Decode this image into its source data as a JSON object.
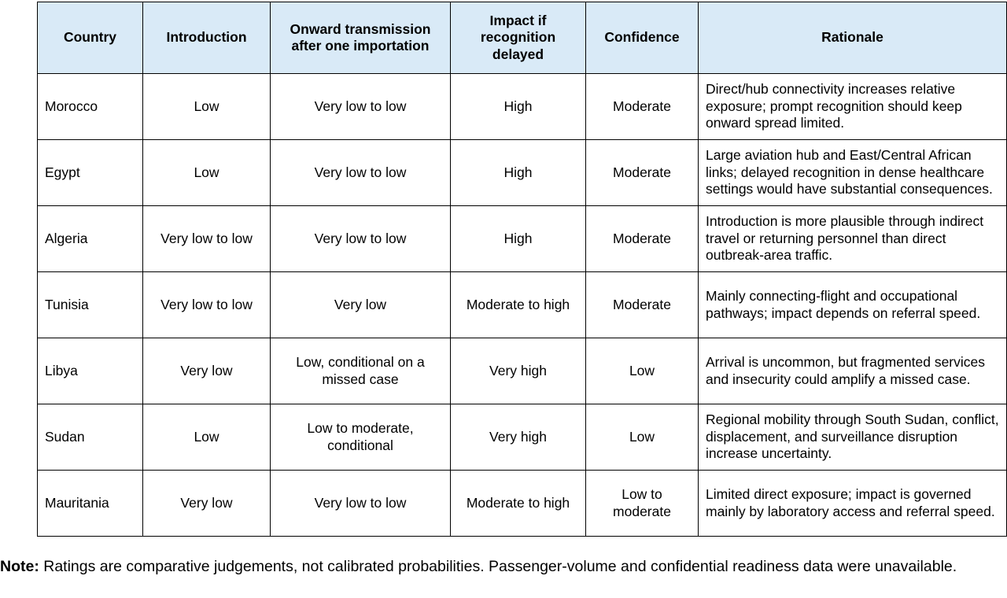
{
  "table": {
    "headers": {
      "country": "Country",
      "introduction": "Introduction",
      "onward": "Onward transmission after one importation",
      "impact": "Impact if recognition delayed",
      "confidence": "Confidence",
      "rationale": "Rationale"
    },
    "rows": [
      {
        "country": "Morocco",
        "introduction": "Low",
        "onward": "Very low to low",
        "impact": "High",
        "confidence": "Moderate",
        "rationale": "Direct/hub connectivity increases relative exposure; prompt recognition should keep onward spread limited."
      },
      {
        "country": "Egypt",
        "introduction": "Low",
        "onward": "Very low to low",
        "impact": "High",
        "confidence": "Moderate",
        "rationale": "Large aviation hub and East/Central African links; delayed recognition in dense healthcare settings would have substantial consequences."
      },
      {
        "country": "Algeria",
        "introduction": "Very low to low",
        "onward": "Very low to low",
        "impact": "High",
        "confidence": "Moderate",
        "rationale": "Introduction is more plausible through indirect travel or returning personnel than direct outbreak-area traffic."
      },
      {
        "country": "Tunisia",
        "introduction": "Very low to low",
        "onward": "Very low",
        "impact": "Moderate to high",
        "confidence": "Moderate",
        "rationale": "Mainly connecting-flight and occupational pathways; impact depends on referral speed."
      },
      {
        "country": "Libya",
        "introduction": "Very low",
        "onward": "Low, conditional on a missed case",
        "impact": "Very high",
        "confidence": "Low",
        "rationale": "Arrival is uncommon, but fragmented services and insecurity could amplify a missed case."
      },
      {
        "country": "Sudan",
        "introduction": "Low",
        "onward": "Low to moderate, conditional",
        "impact": "Very high",
        "confidence": "Low",
        "rationale": "Regional mobility through South Sudan, conflict, displacement, and surveillance disruption increase uncertainty."
      },
      {
        "country": "Mauritania",
        "introduction": "Very low",
        "onward": "Very low to low",
        "impact": "Moderate to high",
        "confidence": "Low to moderate",
        "rationale": "Limited direct exposure; impact is governed mainly by laboratory access and referral speed."
      }
    ]
  },
  "note": {
    "label": "Note:",
    "text": " Ratings are comparative judgements, not calibrated probabilities. Passenger-volume and confidential readiness data were unavailable."
  },
  "colors": {
    "header_background": "#d9eaf7",
    "border": "#000000",
    "text": "#000000"
  }
}
